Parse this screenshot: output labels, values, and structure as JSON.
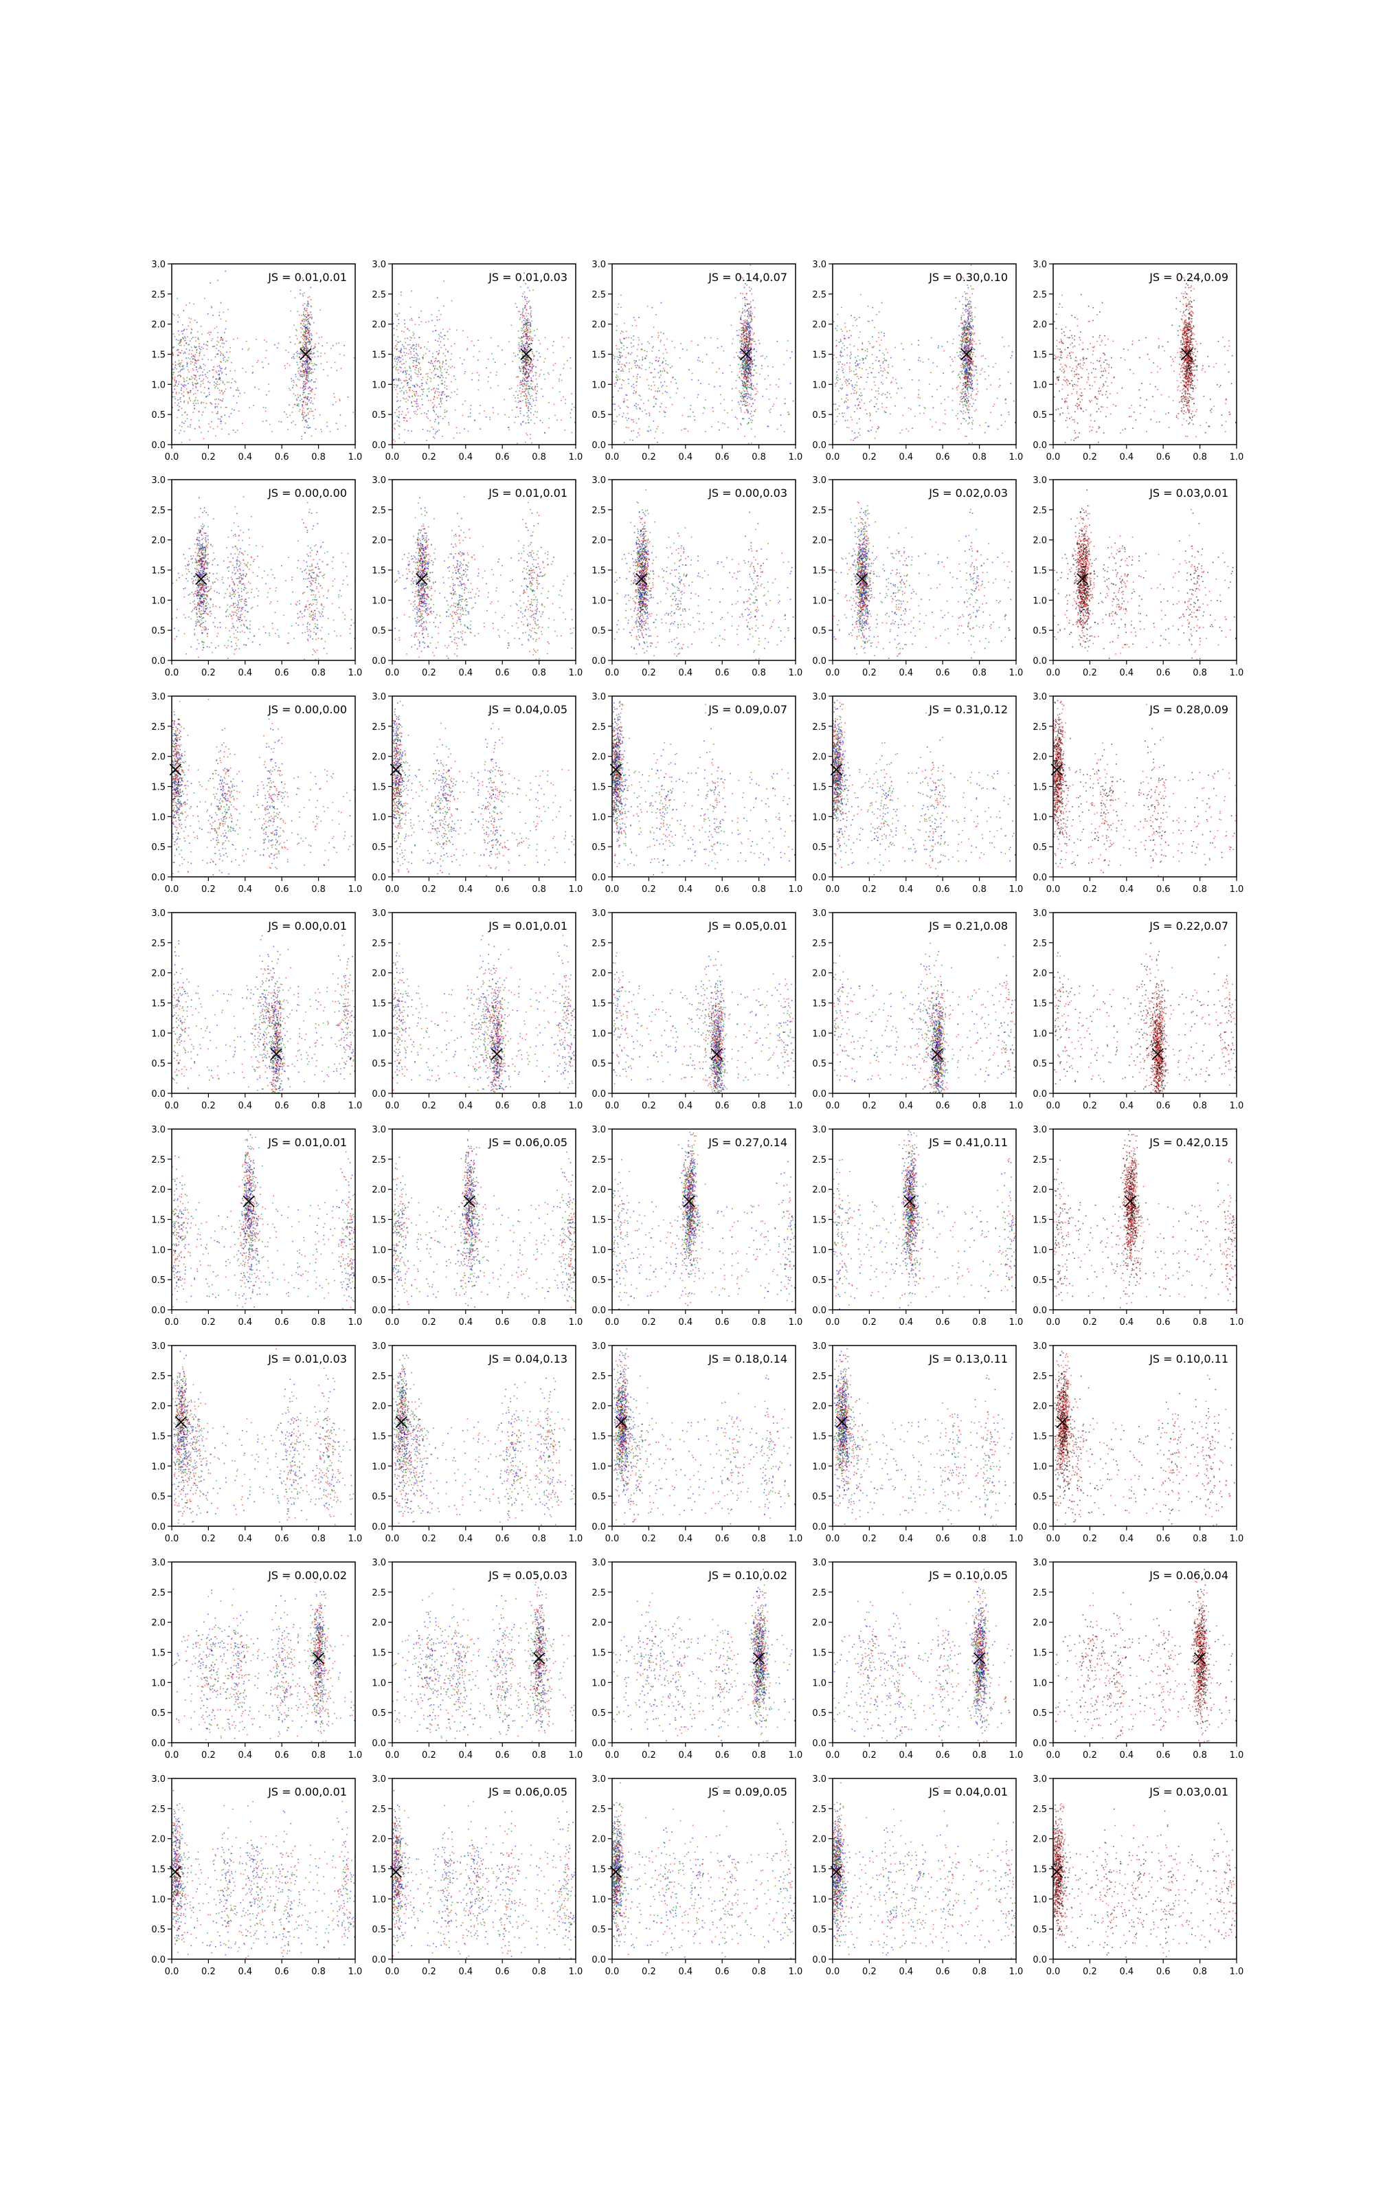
{
  "colors": {
    "red": "#ff0000",
    "green": "#008000",
    "blue": "#0000ff",
    "black": "#000000"
  },
  "chart_data": {
    "type": "scatter",
    "layout": "8 rows x 5 columns grid of scatter panels",
    "xlim": [
      0,
      1.0
    ],
    "ylim": [
      0,
      3.0
    ],
    "xticks": [
      "0.0",
      "0.2",
      "0.4",
      "0.6",
      "0.8",
      "1.0"
    ],
    "yticks": [
      "0.0",
      "0.5",
      "1.0",
      "1.5",
      "2.0",
      "2.5",
      "3.0"
    ],
    "grid": false,
    "column_palettes": [
      [
        "red",
        "green",
        "blue"
      ],
      [
        "red",
        "green",
        "blue"
      ],
      [
        "red",
        "green",
        "blue"
      ],
      [
        "red",
        "green",
        "blue"
      ],
      [
        "red",
        "black"
      ]
    ],
    "rows": [
      {
        "marker": [
          0.73,
          1.5
        ],
        "modes": [
          0.03,
          0.12,
          0.25,
          0.72
        ],
        "js": [
          "JS = 0.01,0.01",
          "JS = 0.01,0.03",
          "JS = 0.14,0.07",
          "JS = 0.30,0.10",
          "JS = 0.24,0.09"
        ]
      },
      {
        "marker": [
          0.16,
          1.35
        ],
        "modes": [
          0.16,
          0.36,
          0.76
        ],
        "js": [
          "JS = 0.00,0.00",
          "JS = 0.01,0.01",
          "JS = 0.00,0.03",
          "JS = 0.02,0.03",
          "JS = 0.03,0.01"
        ]
      },
      {
        "marker": [
          0.02,
          1.78
        ],
        "modes": [
          0.02,
          0.28,
          0.55
        ],
        "js": [
          "JS = 0.00,0.00",
          "JS = 0.04,0.05",
          "JS = 0.09,0.07",
          "JS = 0.31,0.12",
          "JS = 0.28,0.09"
        ]
      },
      {
        "marker": [
          0.57,
          0.65
        ],
        "modes": [
          0.02,
          0.5,
          0.56,
          0.95
        ],
        "js": [
          "JS = 0.00,0.01",
          "JS = 0.01,0.01",
          "JS = 0.05,0.01",
          "JS = 0.21,0.08",
          "JS = 0.22,0.07"
        ]
      },
      {
        "marker": [
          0.42,
          1.8
        ],
        "modes": [
          0.02,
          0.42,
          0.97
        ],
        "js": [
          "JS = 0.01,0.01",
          "JS = 0.06,0.05",
          "JS = 0.27,0.14",
          "JS = 0.41,0.11",
          "JS = 0.42,0.15"
        ]
      },
      {
        "marker": [
          0.05,
          1.73
        ],
        "modes": [
          0.05,
          0.12,
          0.65,
          0.85
        ],
        "js": [
          "JS = 0.01,0.03",
          "JS = 0.04,0.13",
          "JS = 0.18,0.14",
          "JS = 0.13,0.11",
          "JS = 0.10,0.11"
        ]
      },
      {
        "marker": [
          0.8,
          1.4
        ],
        "modes": [
          0.2,
          0.35,
          0.6,
          0.8
        ],
        "js": [
          "JS = 0.00,0.02",
          "JS = 0.05,0.03",
          "JS = 0.10,0.02",
          "JS = 0.10,0.05",
          "JS = 0.06,0.04"
        ]
      },
      {
        "marker": [
          0.02,
          1.45
        ],
        "modes": [
          0.02,
          0.3,
          0.45,
          0.62,
          0.95
        ],
        "js": [
          "JS = 0.00,0.01",
          "JS = 0.06,0.05",
          "JS = 0.09,0.05",
          "JS = 0.04,0.01",
          "JS = 0.03,0.01"
        ]
      }
    ]
  }
}
